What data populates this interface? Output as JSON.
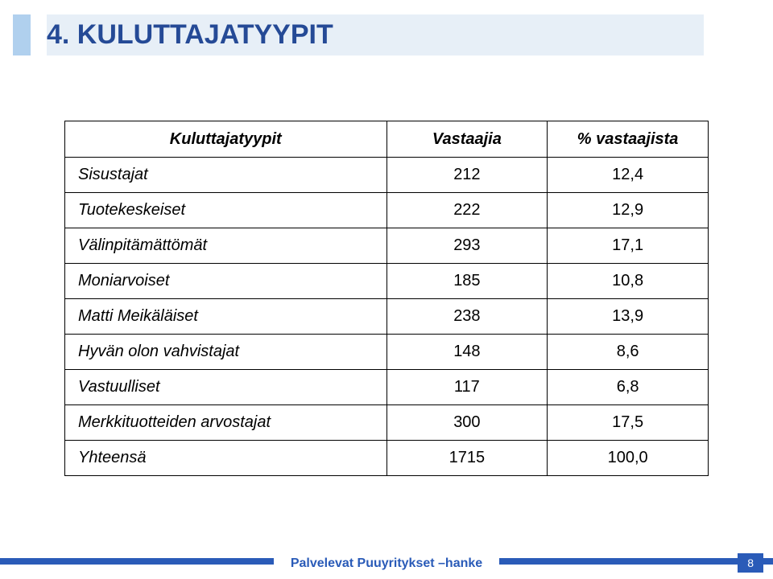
{
  "slide": {
    "title": "4. KULUTTAJATYYPIT",
    "title_color": "#254a96",
    "title_bg": "#e7eff7",
    "accent_color": "#b0d0ee"
  },
  "table": {
    "type": "table",
    "columns": [
      {
        "label": "Kuluttajatyypit",
        "align": "center"
      },
      {
        "label": "Vastaajia",
        "align": "center"
      },
      {
        "label": "% vastaajista",
        "align": "center"
      }
    ],
    "rows": [
      {
        "category": "Sisustajat",
        "count": "212",
        "pct": "12,4"
      },
      {
        "category": "Tuotekeskeiset",
        "count": "222",
        "pct": "12,9"
      },
      {
        "category": "Välinpitämättömät",
        "count": "293",
        "pct": "17,1"
      },
      {
        "category": "Moniarvoiset",
        "count": "185",
        "pct": "10,8"
      },
      {
        "category": "Matti Meikäläiset",
        "count": "238",
        "pct": "13,9"
      },
      {
        "category": "Hyvän olon vahvistajat",
        "count": "148",
        "pct": "8,6"
      },
      {
        "category": "Vastuulliset",
        "count": "117",
        "pct": "6,8"
      },
      {
        "category": "Merkkituotteiden arvostajat",
        "count": "300",
        "pct": "17,5"
      },
      {
        "category": "Yhteensä",
        "count": "1715",
        "pct": "100,0"
      }
    ],
    "border_color": "#000000",
    "font_family": "Verdana",
    "header_fontsize": 20,
    "cell_fontsize": 20,
    "col_widths": [
      "50%",
      "25%",
      "25%"
    ]
  },
  "footer": {
    "text": "Palvelevat Puuyritykset –hanke",
    "bar_color": "#2a5bb8",
    "text_color": "#2a5bb8",
    "page_number": "8",
    "page_bg": "#2a5bb8",
    "page_fg": "#ffffff"
  }
}
